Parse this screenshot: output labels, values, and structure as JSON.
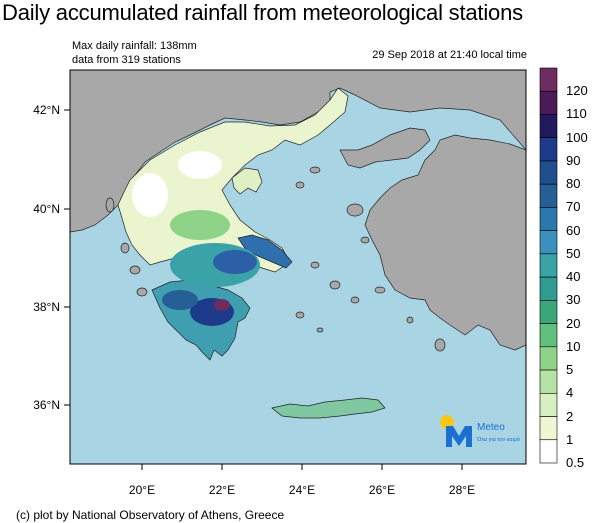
{
  "title": "Daily accumulated rainfall from meteorological stations",
  "info": {
    "max_rainfall": "Max daily rainfall: 138mm",
    "stations": "data from 319 stations",
    "datetime": "29 Sep 2018 at 21:40 local time"
  },
  "axes": {
    "lat_labels": [
      "42°N",
      "40°N",
      "38°N",
      "36°N"
    ],
    "lon_labels": [
      "20°E",
      "22°E",
      "24°E",
      "26°E",
      "28°E"
    ]
  },
  "colorbar": {
    "labels": [
      "120",
      "110",
      "100",
      "90",
      "80",
      "70",
      "60",
      "50",
      "40",
      "30",
      "20",
      "10",
      "5",
      "4",
      "2",
      "1",
      "0.5"
    ],
    "colors": [
      "#6e2d5e",
      "#4a1a5a",
      "#231a5e",
      "#1e3a8a",
      "#1f4f8f",
      "#255f96",
      "#2b77ae",
      "#3a91bd",
      "#3aa3a8",
      "#2f9c8f",
      "#3aa67a",
      "#62bf7d",
      "#8fd388",
      "#b6e2a6",
      "#d8efbf",
      "#eef7d2",
      "#ffffff"
    ]
  },
  "logo": {
    "name": "Meteo",
    "tagline": "Όλα για τον καιρό",
    "sun_color": "#f7c71b",
    "brand_color": "#1b6fd1"
  },
  "credit": "(c) plot by National Observatory of Athens, Greece",
  "colors": {
    "sea": "#a9d4e3",
    "land_other": "#a8a8a8",
    "border": "#222222"
  }
}
